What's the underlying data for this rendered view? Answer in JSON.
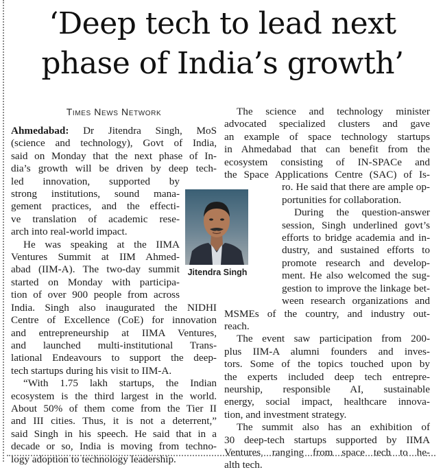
{
  "headline": {
    "line1": "‘Deep tech to lead next",
    "line2": "phase of India’s growth’"
  },
  "byline": "Times News Network",
  "photo_caption": "Jitendra Singh",
  "left": {
    "dateline": "Ahmedabad:",
    "l1": "Dr Jitendra Singh, MoS",
    "l2": "(science and technology), Govt of India,",
    "l3": "said on Monday that the next phase of In-",
    "l4": "dia’s growth will be driven by deep tech-",
    "l5": "led innovation, supported by",
    "l6": "strong institutions, sound mana-",
    "l7": "gement practices, and the effecti-",
    "l8": "ve translation of academic rese-",
    "l9": "arch into real-world impact.",
    "l10": "He was speaking at the IIMA",
    "l11": "Ventures Summit at IIM Ahmed-",
    "l12": "abad (IIM-A). The two-day summit",
    "l13": "started on Monday with participa-",
    "l14": "tion of over 900 people from across",
    "l15": "India. Singh also inaugurated the NIDHI",
    "l16": "Centre of Excellence (CoE) for innovation",
    "l17": "and entrepreneurship at IIMA Ventures,",
    "l18": "and launched multi-institutional Trans-",
    "l19": "lational Endeavours to support the deep-",
    "l20": "tech startups during his visit to IIM-A.",
    "l21": "“With 1.75 lakh startups, the Indian",
    "l22": "ecosystem is the third largest in the world.",
    "l23": "About 50% of them come from the Tier II",
    "l24": "and III cities. Thus, it is not a deterrent,”",
    "l25": "said Singh in his speech. He said that in a",
    "l26": "decade or so, India is moving from techno-",
    "l27": "logy adoption to technology leadership."
  },
  "right": {
    "r1": "The science and technology minister",
    "r2": "advocated specialized clusters and gave",
    "r3": "an example of space technology startups",
    "r4": "in Ahmedabad that can benefit from the",
    "r5": "ecosystem consisting of IN-SPACe and",
    "r6": "the Space Applications Centre (SAC) of Is-",
    "r7": "ro. He said that there are ample op-",
    "r8": "portunities for collaboration.",
    "r9": "During the question-answer",
    "r10": "session, Singh underlined govt’s",
    "r11": "efforts to bridge academia and in-",
    "r12": "dustry, and sustained efforts to",
    "r13": "promote research and develop-",
    "r14": "ment. He also welcomed the sug-",
    "r15": "gestion to improve the linkage bet-",
    "r16": "ween research organizations and",
    "r17": "MSMEs of the country, and industry out-",
    "r18": "reach.",
    "r19": "The event saw participation from 200-",
    "r20": "plus IIM-A alumni founders and inves-",
    "r21": "tors. Some of the topics touched upon by",
    "r22": "the experts included deep tech entrepre-",
    "r23": "neurship, responsible AI, sustainable",
    "r24": "energy, social impact, healthcare innova-",
    "r25": "tion, and investment strategy.",
    "r26": "The summit also has an exhibition of",
    "r27": "30 deep-tech startups supported by IIMA",
    "r28": "Ventures, ranging from space tech to he-",
    "r29": "alth tech."
  }
}
